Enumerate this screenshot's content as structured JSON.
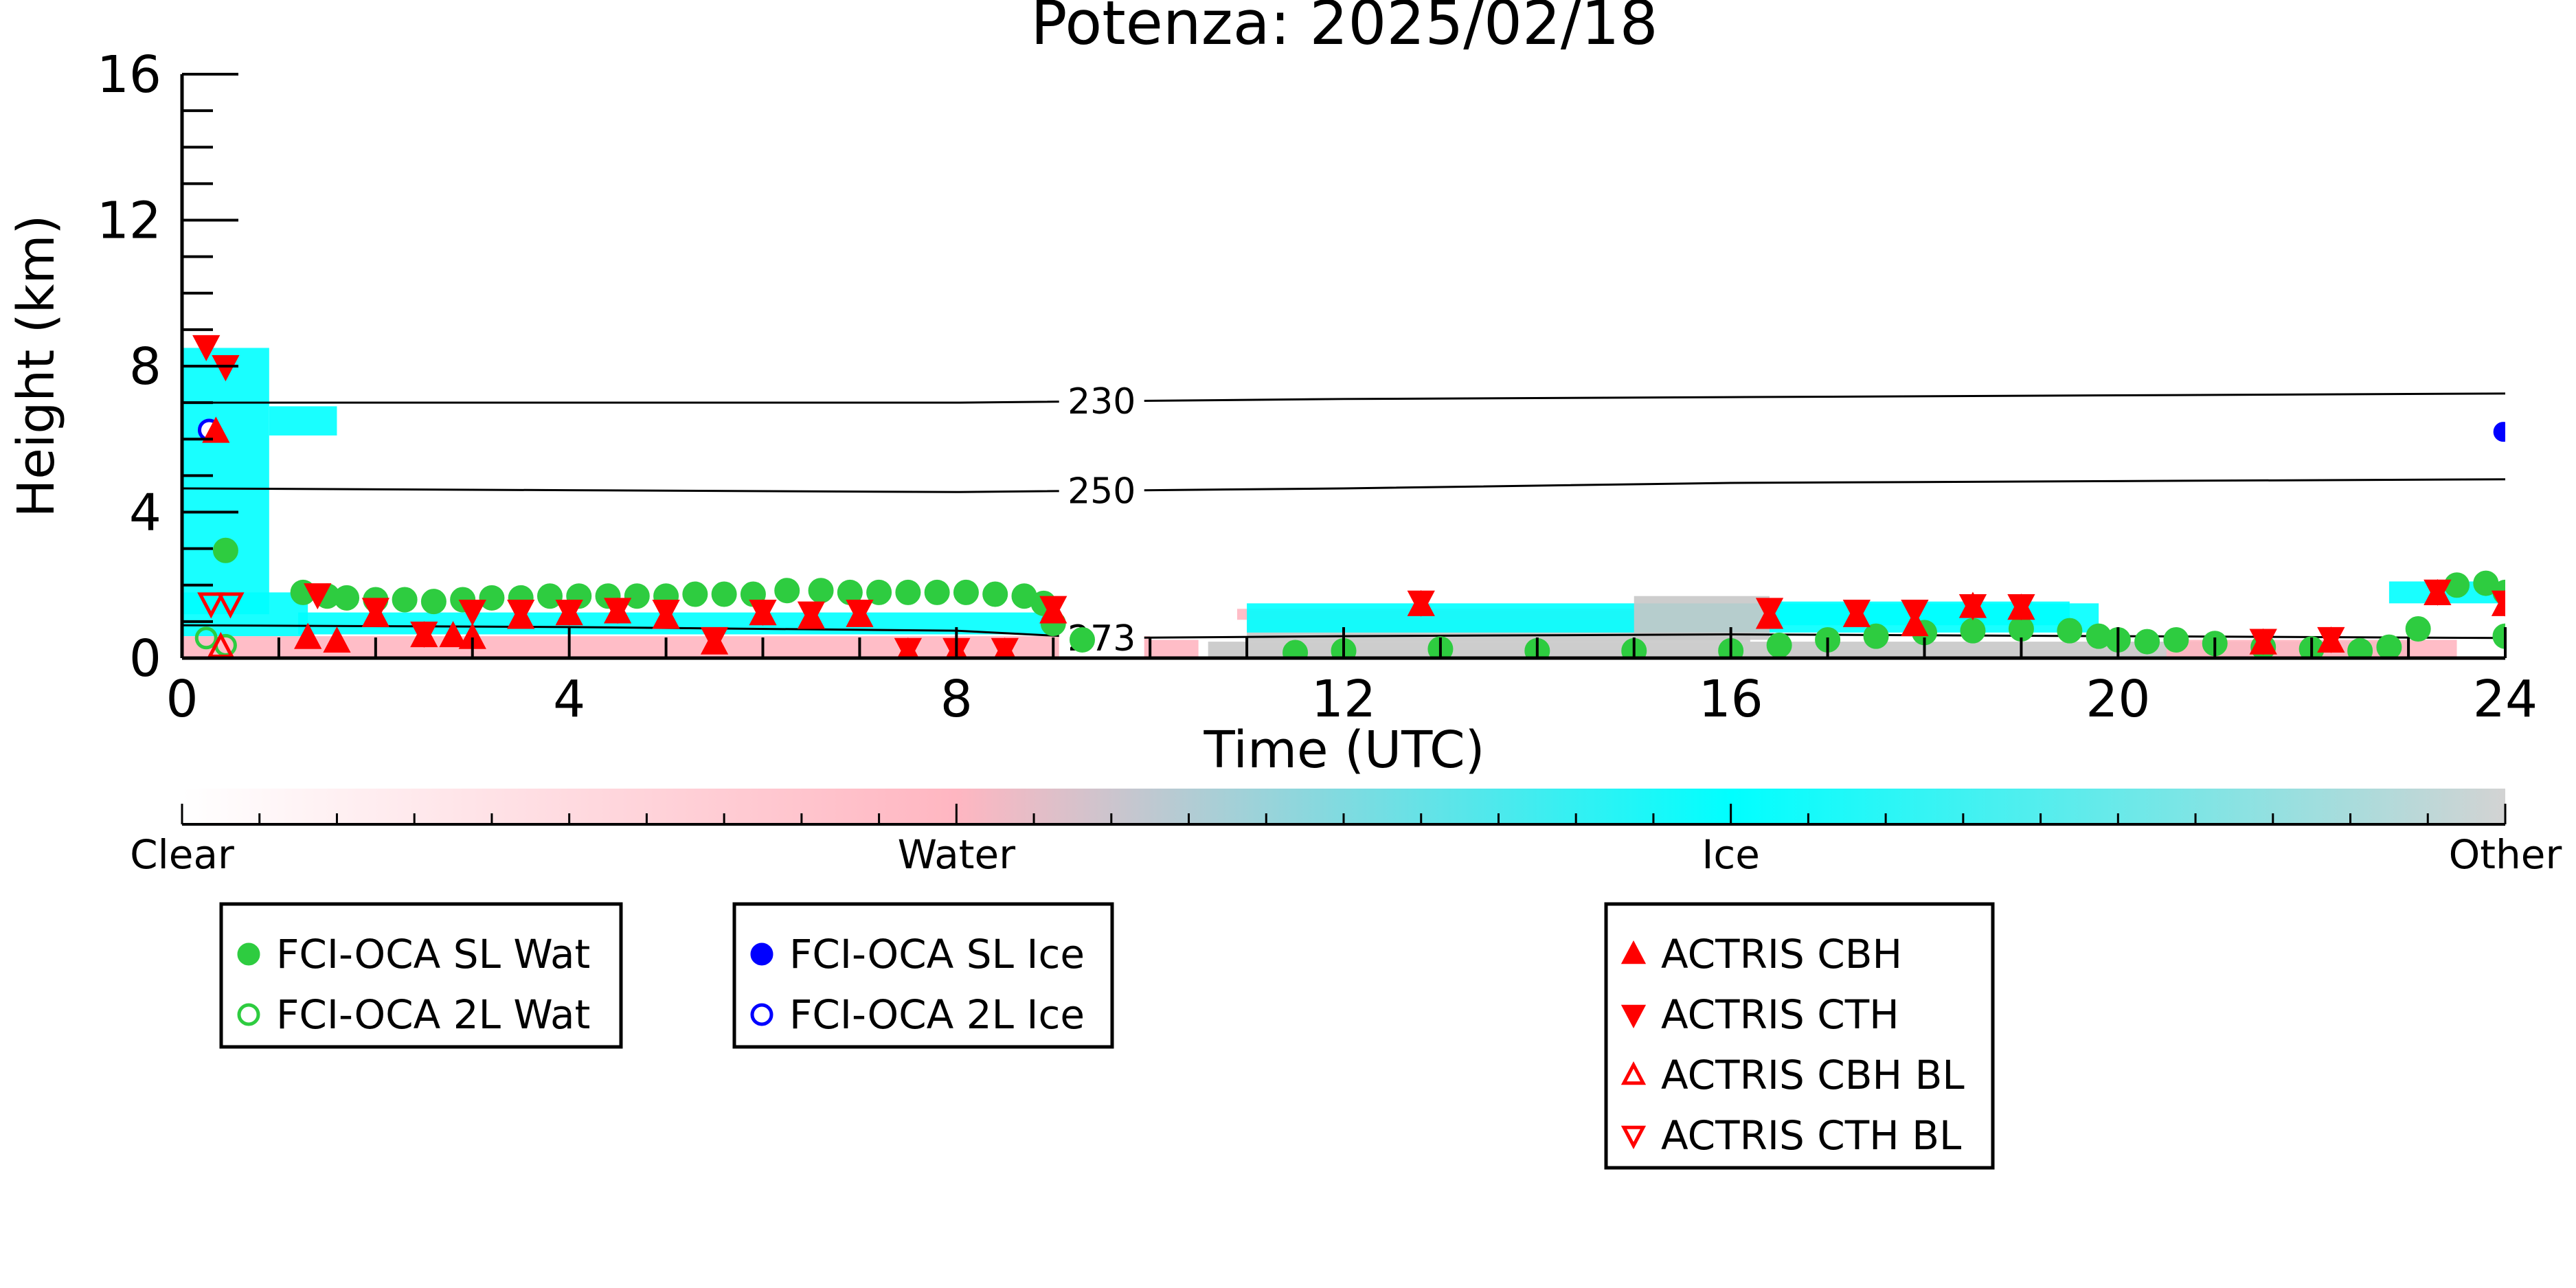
{
  "chart_data": {
    "type": "scatter",
    "title": "Potenza: 2025/02/18",
    "xlabel": "Time (UTC)",
    "ylabel": "Height (km)",
    "xlim": [
      0,
      24
    ],
    "ylim": [
      0,
      16
    ],
    "x_ticks": [
      "0",
      "4",
      "8",
      "12",
      "16",
      "20",
      "24"
    ],
    "y_ticks": [
      "0",
      "4",
      "8",
      "12",
      "16"
    ],
    "colors": {
      "water": "#ffb6c1",
      "ice": "#00ffff",
      "other": "#c8c8c8",
      "fci_wat": "#2ecc40",
      "fci_ice": "#0000ff",
      "actris": "#ff0000"
    },
    "classification_bar": {
      "labels": [
        "Clear",
        "Water",
        "Ice",
        "Other"
      ],
      "colors": [
        "#ffffff",
        "#ffb6c1",
        "#00ffff",
        "#d3d3d3"
      ]
    },
    "contours": [
      {
        "label": "230",
        "x": [
          0,
          4,
          8,
          12,
          16,
          20,
          24
        ],
        "y": [
          7.0,
          7.0,
          7.0,
          7.1,
          7.15,
          7.2,
          7.25
        ]
      },
      {
        "label": "250",
        "x": [
          0,
          4,
          8,
          12,
          16,
          20,
          24
        ],
        "y": [
          4.65,
          4.6,
          4.55,
          4.65,
          4.8,
          4.85,
          4.9
        ]
      },
      {
        "label": "273",
        "x": [
          0,
          4,
          8,
          9.5,
          12,
          16,
          20,
          24
        ],
        "y": [
          0.9,
          0.85,
          0.75,
          0.55,
          0.6,
          0.65,
          0.6,
          0.55
        ]
      }
    ],
    "legends": [
      {
        "entries": [
          {
            "label": "FCI-OCA SL Wat",
            "marker": "circle-filled",
            "color": "#2ecc40"
          },
          {
            "label": "FCI-OCA 2L Wat",
            "marker": "circle-open",
            "color": "#2ecc40"
          }
        ]
      },
      {
        "entries": [
          {
            "label": "FCI-OCA SL Ice",
            "marker": "circle-filled",
            "color": "#0000ff"
          },
          {
            "label": "FCI-OCA 2L Ice",
            "marker": "circle-open",
            "color": "#0000ff"
          }
        ]
      },
      {
        "entries": [
          {
            "label": "ACTRIS CBH",
            "marker": "triangle-up-filled",
            "color": "#ff0000"
          },
          {
            "label": "ACTRIS CTH",
            "marker": "triangle-down-filled",
            "color": "#ff0000"
          },
          {
            "label": "ACTRIS CBH BL",
            "marker": "triangle-up-open",
            "color": "#ff0000"
          },
          {
            "label": "ACTRIS CTH BL",
            "marker": "triangle-down-open",
            "color": "#ff0000"
          }
        ]
      }
    ],
    "series": [
      {
        "name": "FCI-OCA SL Wat",
        "points": [
          [
            0.45,
            2.95
          ],
          [
            1.25,
            1.8
          ],
          [
            1.5,
            1.7
          ],
          [
            1.7,
            1.65
          ],
          [
            2.0,
            1.6
          ],
          [
            2.3,
            1.6
          ],
          [
            2.6,
            1.55
          ],
          [
            2.9,
            1.6
          ],
          [
            3.2,
            1.65
          ],
          [
            3.5,
            1.65
          ],
          [
            3.8,
            1.7
          ],
          [
            4.1,
            1.7
          ],
          [
            4.4,
            1.7
          ],
          [
            4.7,
            1.7
          ],
          [
            5.0,
            1.7
          ],
          [
            5.3,
            1.75
          ],
          [
            5.6,
            1.75
          ],
          [
            5.9,
            1.75
          ],
          [
            6.25,
            1.85
          ],
          [
            6.6,
            1.85
          ],
          [
            6.9,
            1.8
          ],
          [
            7.2,
            1.8
          ],
          [
            7.5,
            1.8
          ],
          [
            7.8,
            1.8
          ],
          [
            8.1,
            1.8
          ],
          [
            8.4,
            1.75
          ],
          [
            8.7,
            1.7
          ],
          [
            8.9,
            1.5
          ],
          [
            9.0,
            0.95
          ],
          [
            9.3,
            0.5
          ],
          [
            11.5,
            0.15
          ],
          [
            12.0,
            0.2
          ],
          [
            13.0,
            0.25
          ],
          [
            14.0,
            0.2
          ],
          [
            15.0,
            0.2
          ],
          [
            16.0,
            0.2
          ],
          [
            16.5,
            0.35
          ],
          [
            17.0,
            0.5
          ],
          [
            17.5,
            0.6
          ],
          [
            18.0,
            0.7
          ],
          [
            18.5,
            0.75
          ],
          [
            19.0,
            0.8
          ],
          [
            19.5,
            0.75
          ],
          [
            19.8,
            0.6
          ],
          [
            20.0,
            0.5
          ],
          [
            20.3,
            0.45
          ],
          [
            20.6,
            0.5
          ],
          [
            21.0,
            0.4
          ],
          [
            21.5,
            0.3
          ],
          [
            22.0,
            0.25
          ],
          [
            22.5,
            0.2
          ],
          [
            22.8,
            0.3
          ],
          [
            23.1,
            0.8
          ],
          [
            23.5,
            2.0
          ],
          [
            23.8,
            2.05
          ],
          [
            24.0,
            1.8
          ],
          [
            24.0,
            0.6
          ]
        ]
      },
      {
        "name": "FCI-OCA 2L Wat",
        "points": [
          [
            0.25,
            0.55
          ],
          [
            0.45,
            0.35
          ]
        ]
      },
      {
        "name": "FCI-OCA SL Ice",
        "points": [
          [
            23.98,
            6.2
          ]
        ]
      },
      {
        "name": "FCI-OCA 2L Ice",
        "points": [
          [
            0.28,
            6.25
          ]
        ]
      },
      {
        "name": "ACTRIS CBH",
        "points": [
          [
            0.35,
            6.2
          ],
          [
            1.3,
            0.55
          ],
          [
            1.6,
            0.45
          ],
          [
            2.0,
            1.15
          ],
          [
            2.5,
            0.6
          ],
          [
            2.8,
            0.6
          ],
          [
            3.0,
            0.55
          ],
          [
            3.5,
            1.1
          ],
          [
            4.0,
            1.2
          ],
          [
            4.5,
            1.25
          ],
          [
            5.0,
            1.1
          ],
          [
            5.5,
            0.4
          ],
          [
            6.0,
            1.2
          ],
          [
            6.5,
            1.1
          ],
          [
            7.0,
            1.15
          ],
          [
            7.5,
            0.15
          ],
          [
            8.0,
            0.15
          ],
          [
            8.5,
            0.15
          ],
          [
            9.0,
            1.25
          ],
          [
            12.8,
            1.45
          ],
          [
            16.4,
            1.1
          ],
          [
            17.3,
            1.15
          ],
          [
            17.9,
            0.9
          ],
          [
            18.5,
            1.4
          ],
          [
            19.0,
            1.35
          ],
          [
            21.5,
            0.4
          ],
          [
            22.2,
            0.45
          ],
          [
            23.3,
            1.75
          ],
          [
            24.0,
            1.45
          ]
        ]
      },
      {
        "name": "ACTRIS CTH",
        "points": [
          [
            0.25,
            8.55
          ],
          [
            0.45,
            8.0
          ],
          [
            1.4,
            1.75
          ],
          [
            2.0,
            1.35
          ],
          [
            2.5,
            0.7
          ],
          [
            3.0,
            1.3
          ],
          [
            3.5,
            1.3
          ],
          [
            4.0,
            1.3
          ],
          [
            4.5,
            1.35
          ],
          [
            5.0,
            1.3
          ],
          [
            5.5,
            0.55
          ],
          [
            6.0,
            1.3
          ],
          [
            6.5,
            1.25
          ],
          [
            7.0,
            1.3
          ],
          [
            7.5,
            0.25
          ],
          [
            8.0,
            0.25
          ],
          [
            8.5,
            0.25
          ],
          [
            9.0,
            1.4
          ],
          [
            12.8,
            1.55
          ],
          [
            16.4,
            1.35
          ],
          [
            17.3,
            1.3
          ],
          [
            17.9,
            1.3
          ],
          [
            18.5,
            1.45
          ],
          [
            19.0,
            1.45
          ],
          [
            21.5,
            0.5
          ],
          [
            22.2,
            0.55
          ],
          [
            23.3,
            1.85
          ],
          [
            24.0,
            1.55
          ]
        ]
      },
      {
        "name": "ACTRIS CBH BL",
        "points": [
          [
            0.4,
            0.3
          ]
        ]
      },
      {
        "name": "ACTRIS CTH BL",
        "points": [
          [
            0.3,
            1.5
          ],
          [
            0.5,
            1.5
          ]
        ]
      }
    ]
  }
}
